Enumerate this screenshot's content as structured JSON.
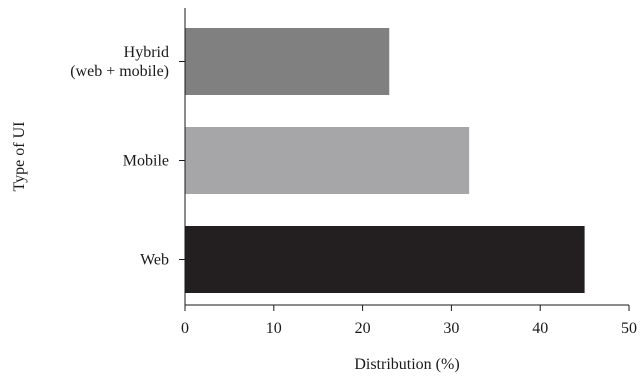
{
  "chart_data": {
    "type": "bar",
    "orientation": "horizontal",
    "title": "",
    "xlabel": "Distribution (%)",
    "ylabel": "Type of UI",
    "xlim": [
      0,
      50
    ],
    "xticks": [
      "0",
      "10",
      "20",
      "30",
      "40",
      "50"
    ],
    "grid": false,
    "categories": [
      {
        "lines": [
          "Hybrid",
          "(web + mobile)"
        ],
        "value": 23,
        "color": "#808080"
      },
      {
        "lines": [
          "Mobile"
        ],
        "value": 32,
        "color": "#a6a6a8"
      },
      {
        "lines": [
          "Web"
        ],
        "value": 45,
        "color": "#231f20"
      }
    ]
  }
}
